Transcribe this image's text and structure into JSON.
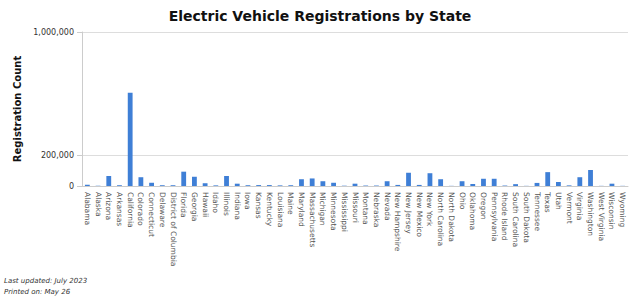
{
  "chart_data": {
    "type": "bar",
    "title": "Electric Vehicle Registrations by State",
    "y_label": "Registration Count",
    "annotations": [
      "Last updated: July 2023",
      "Printed on: May 26"
    ],
    "categories": [
      "Alabama",
      "Alaska",
      "Arizona",
      "Arkansas",
      "California",
      "Colorado",
      "Connecticut",
      "Delaware",
      "District of Columbia",
      "Florida",
      "Georgia",
      "Hawaii",
      "Idaho",
      "Illinois",
      "Indiana",
      "Iowa",
      "Kansas",
      "Kentucky",
      "Louisiana",
      "Maine",
      "Maryland",
      "Massachusetts",
      "Michigan",
      "Minnesota",
      "Mississippi",
      "Missouri",
      "Montana",
      "Nebraska",
      "Nevada",
      "New Hampshire",
      "New Jersey",
      "New Mexico",
      "New York",
      "North Carolina",
      "North Dakota",
      "Ohio",
      "Oklahoma",
      "Oregon",
      "Pennsylvania",
      "Rhode Island",
      "South Carolina",
      "South Dakota",
      "Tennessee",
      "Texas",
      "Utah",
      "Vermont",
      "Virginia",
      "Washington",
      "West Virginia",
      "Wisconsin",
      "Wyoming"
    ],
    "values": [
      8000,
      1000,
      65000,
      5000,
      605000,
      57000,
      21000,
      5000,
      5000,
      93000,
      60000,
      18000,
      4000,
      65000,
      15000,
      5000,
      6000,
      6000,
      4000,
      5000,
      44000,
      49000,
      31000,
      21000,
      2000,
      15000,
      3000,
      3000,
      31000,
      7000,
      86000,
      7000,
      83000,
      44000,
      1000,
      31000,
      13000,
      47000,
      47000,
      3000,
      12000,
      1000,
      20000,
      90000,
      26000,
      4000,
      57000,
      104000,
      1000,
      15000,
      1000
    ],
    "color": "#3f7fd6",
    "ylim": [
      0,
      1000000
    ],
    "yticks": [
      0,
      {
        "value": 200000,
        "label": "200,000"
      },
      {
        "value": 1000000,
        "label": "1,000,000"
      }
    ],
    "grid": true
  }
}
